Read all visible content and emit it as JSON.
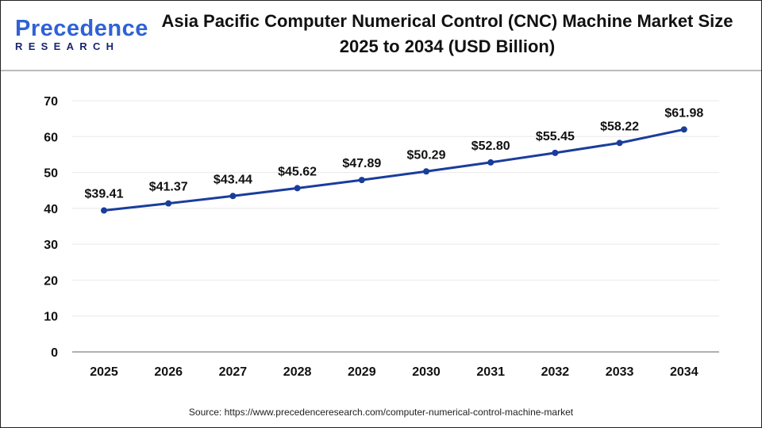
{
  "logo": {
    "line1_a": "P",
    "line1_b": "recedence",
    "line2": "RESEARCH"
  },
  "title": "Asia Pacific Computer Numerical Control (CNC) Machine Market Size 2025 to 2034 (USD Billion)",
  "source": "Source: https://www.precedenceresearch.com/computer-numerical-control-machine-market",
  "colors": {
    "line": "#1a3d9c",
    "grid": "#e8e8e8",
    "axis": "#b0b0b0"
  },
  "chart_data": {
    "type": "line",
    "title": "Asia Pacific Computer Numerical Control (CNC) Machine Market Size 2025 to 2034 (USD Billion)",
    "xlabel": "",
    "ylabel": "",
    "categories": [
      "2025",
      "2026",
      "2027",
      "2028",
      "2029",
      "2030",
      "2031",
      "2032",
      "2033",
      "2034"
    ],
    "values": [
      39.41,
      41.37,
      43.44,
      45.62,
      47.89,
      50.29,
      52.8,
      55.45,
      58.22,
      61.98
    ],
    "data_labels": [
      "$39.41",
      "$41.37",
      "$43.44",
      "$45.62",
      "$47.89",
      "$50.29",
      "$52.80",
      "$55.45",
      "$58.22",
      "$61.98"
    ],
    "ylim": [
      0,
      70
    ],
    "yticks": [
      "0",
      "10",
      "20",
      "30",
      "40",
      "50",
      "60",
      "70"
    ],
    "grid": true,
    "legend": "none"
  }
}
